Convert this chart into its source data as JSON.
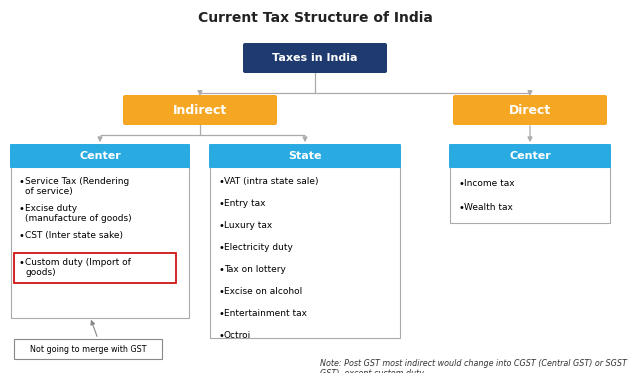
{
  "title": "Current Tax Structure of India",
  "title_fontsize": 10,
  "bg_color": "#ffffff",
  "colors": {
    "dark_blue": "#1e3a6e",
    "orange": "#f5a623",
    "light_blue": "#29abe2",
    "body_fill": "#eaf6fd",
    "body_fill_white": "#ffffff",
    "red_border": "#cc0000",
    "gray_line": "#aaaaaa",
    "border_gray": "#aaaaaa"
  },
  "root_label": "Taxes in India",
  "indirect_label": "Indirect",
  "direct_label": "Direct",
  "center1_label": "Center",
  "state_label": "State",
  "center2_label": "Center",
  "center_indirect_items": [
    "Service Tax (Rendering\nof service)",
    "Excise duty\n(manufacture of goods)",
    "CST (Inter state sake)",
    "Custom duty (Import of\ngoods)"
  ],
  "state_items": [
    "VAT (intra state sale)",
    "Entry tax",
    "Luxury tax",
    "Electricity duty",
    "Tax on lottery",
    "Excise on alcohol",
    "Entertainment tax",
    "Octroi"
  ],
  "center_direct_items": [
    "Income tax",
    "Wealth tax"
  ],
  "note_label": "Not going to merge with GST",
  "footnote": "Note: Post GST most indirect would change into CGST (Central GST) or SGST (State\nGST), except custom duty"
}
